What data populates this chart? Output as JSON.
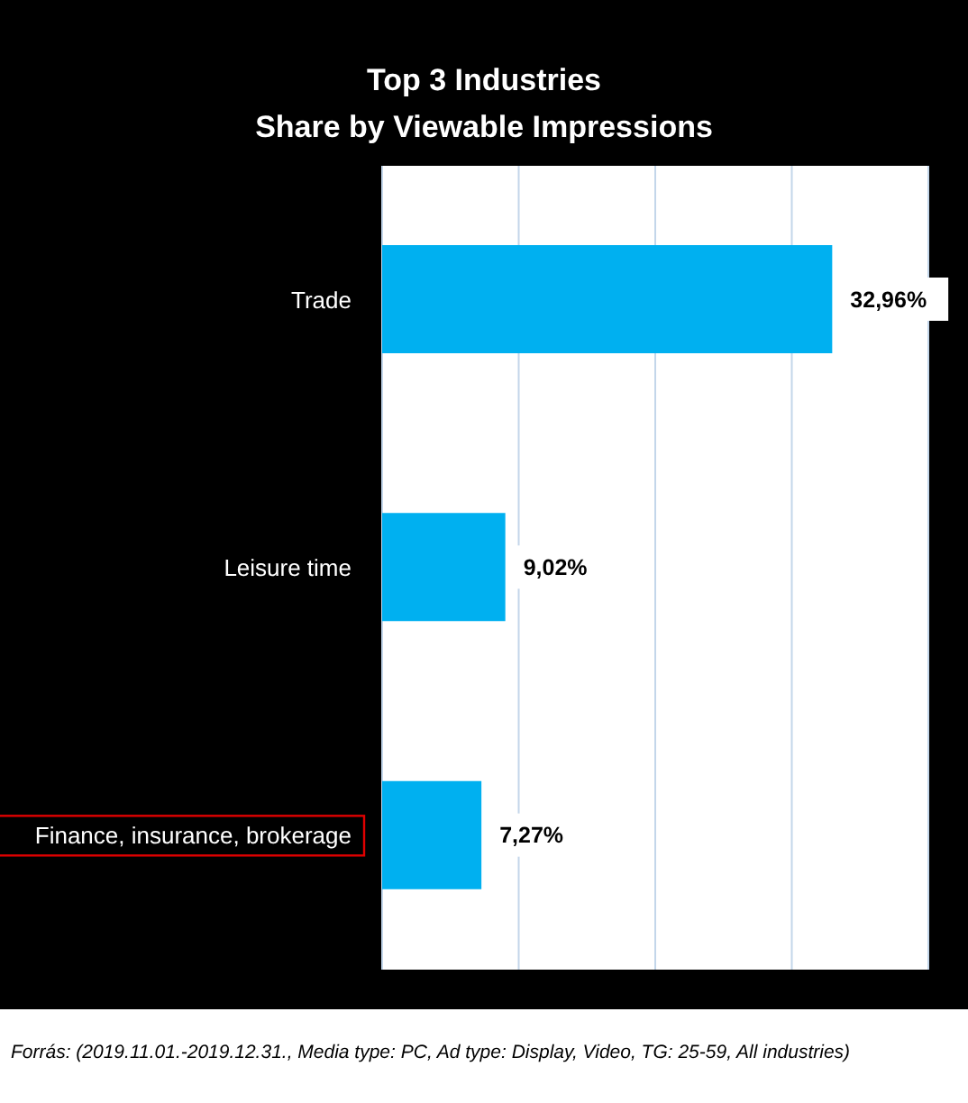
{
  "chart_data": {
    "type": "bar",
    "orientation": "horizontal",
    "title": "Top 3 Industries\nShare by Viewable Impressions",
    "categories": [
      "Trade",
      "Leisure time",
      "Finance, insurance, brokerage"
    ],
    "values": [
      32.96,
      9.02,
      7.27
    ],
    "color": "#00b0f0",
    "value_labels": [
      "32,96%",
      "9,02%",
      "7,27%"
    ],
    "xlim": [
      0,
      40
    ],
    "tick_labels": "y",
    "grid": "x",
    "annotations": [
      "Forrás: (2019.11.01.-2019.12.31., Media type: PC, Ad type: Display, Video, TG: 25-59, All industries)"
    ]
  }
}
